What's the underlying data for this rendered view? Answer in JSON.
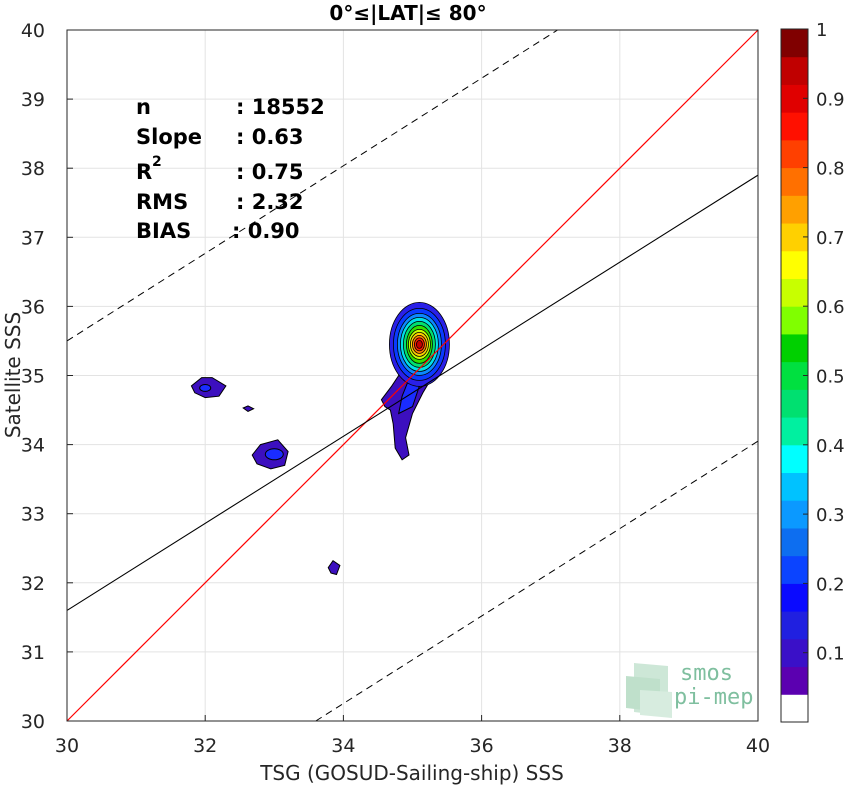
{
  "chart_data": {
    "type": "contour",
    "title": "0°≤|LAT|≤ 80°",
    "xlabel": "TSG (GOSUD-Sailing-ship) SSS",
    "ylabel": "Satellite SSS",
    "xlim": [
      30,
      40
    ],
    "ylim": [
      30,
      40
    ],
    "xticks": [
      30,
      32,
      34,
      36,
      38,
      40
    ],
    "yticks": [
      30,
      31,
      32,
      33,
      34,
      35,
      36,
      37,
      38,
      39,
      40
    ],
    "grid": true,
    "stats": {
      "n_label": "n",
      "n_value": ": 18552",
      "slope_label": "Slope",
      "slope_value": ": 0.63",
      "r2_label": "R",
      "r2_sup": "2",
      "r2_value": ": 0.75",
      "rms_label": "RMS",
      "rms_value": ": 2.32",
      "bias_label": "BIAS",
      "bias_value": ": 0.90"
    },
    "lines": {
      "identity": {
        "x": [
          30,
          40
        ],
        "y": [
          30,
          40
        ],
        "color": "#ff0000"
      },
      "fit": {
        "x": [
          30,
          40
        ],
        "y": [
          31.6,
          37.9
        ],
        "color": "#000000"
      },
      "upper_bound": {
        "x": [
          30,
          37.1
        ],
        "y": [
          35.5,
          40
        ],
        "color": "#000000",
        "dash": true
      },
      "lower_bound": {
        "x": [
          33.6,
          40
        ],
        "y": [
          30,
          34.05
        ],
        "color": "#000000",
        "dash": true
      }
    },
    "contours": {
      "outer_color": "#3c0fbf",
      "blobs": [
        {
          "name": "main-cluster",
          "points": [
            [
              34.55,
              34.65
            ],
            [
              34.7,
              34.85
            ],
            [
              34.8,
              35.0
            ],
            [
              34.88,
              35.5
            ],
            [
              35.0,
              35.8
            ],
            [
              35.2,
              35.97
            ],
            [
              35.4,
              35.72
            ],
            [
              35.48,
              35.35
            ],
            [
              35.3,
              35.0
            ],
            [
              35.15,
              34.75
            ],
            [
              35.0,
              34.45
            ],
            [
              34.9,
              34.1
            ],
            [
              34.95,
              33.85
            ],
            [
              34.85,
              33.78
            ],
            [
              34.75,
              33.95
            ],
            [
              34.72,
              34.3
            ],
            [
              34.68,
              34.5
            ],
            [
              34.6,
              34.55
            ]
          ]
        },
        {
          "name": "blob-32-34.8",
          "points": [
            [
              31.8,
              34.85
            ],
            [
              31.95,
              34.97
            ],
            [
              32.1,
              34.97
            ],
            [
              32.3,
              34.85
            ],
            [
              32.2,
              34.7
            ],
            [
              32.0,
              34.68
            ],
            [
              31.85,
              34.75
            ]
          ]
        },
        {
          "name": "blob-32.6-34.5",
          "points": [
            [
              32.55,
              34.53
            ],
            [
              32.62,
              34.56
            ],
            [
              32.7,
              34.52
            ],
            [
              32.62,
              34.48
            ]
          ]
        },
        {
          "name": "blob-33-33.8",
          "points": [
            [
              32.68,
              33.85
            ],
            [
              32.8,
              34.0
            ],
            [
              33.05,
              34.07
            ],
            [
              33.2,
              33.9
            ],
            [
              33.15,
              33.7
            ],
            [
              32.95,
              33.65
            ],
            [
              32.75,
              33.72
            ]
          ]
        },
        {
          "name": "blob-33.9-32.2",
          "points": [
            [
              33.78,
              32.22
            ],
            [
              33.85,
              32.32
            ],
            [
              33.95,
              32.25
            ],
            [
              33.9,
              32.12
            ],
            [
              33.82,
              32.14
            ]
          ]
        }
      ],
      "peak": {
        "x": 35.1,
        "y": 35.45,
        "level": 1.0
      }
    },
    "colorbar": {
      "ticks": [
        0.1,
        0.2,
        0.3,
        0.4,
        0.5,
        0.6,
        0.7,
        0.8,
        0.9,
        1
      ],
      "tick_labels": [
        "0.1",
        "0.2",
        "0.3",
        "0.4",
        "0.5",
        "0.6",
        "0.7",
        "0.8",
        "0.9",
        "1"
      ],
      "colors": [
        "#ffffff",
        "#5b00b0",
        "#3a10c8",
        "#2020e0",
        "#0a0aff",
        "#0b44ff",
        "#0d6ef0",
        "#0b99ff",
        "#00c2ff",
        "#00ffff",
        "#00f0a0",
        "#00e070",
        "#00e040",
        "#00d000",
        "#80ff00",
        "#c8ff00",
        "#ffff00",
        "#ffd000",
        "#ffa000",
        "#ff7000",
        "#ff4000",
        "#ff1000",
        "#e00000",
        "#c00000",
        "#800000"
      ]
    }
  },
  "logo": {
    "line1": "smos",
    "line2": "pi-mep"
  }
}
